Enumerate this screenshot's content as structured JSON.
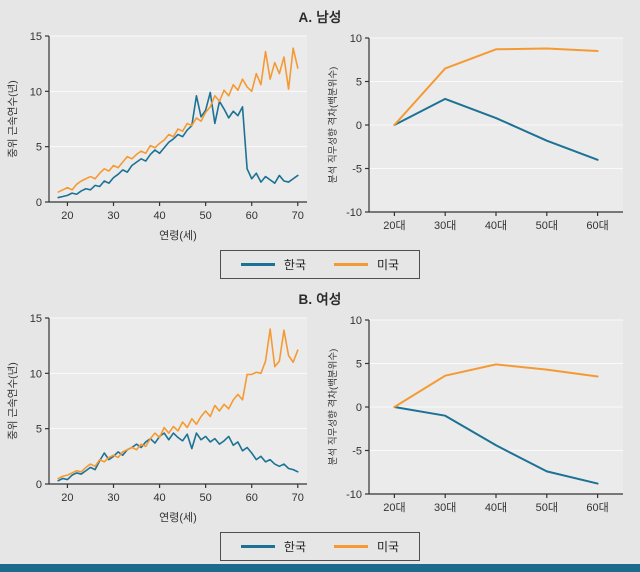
{
  "page": {
    "background": "#e6e6e6"
  },
  "colors": {
    "korea": "#1c7295",
    "us": "#f59a33",
    "axis": "#333333",
    "text": "#333333",
    "grid": "#fafafa",
    "plot_bg": "#ebebeb",
    "footer_bar": "#1d6a8f"
  },
  "legend": {
    "korea": "한국",
    "us": "미국"
  },
  "panels": [
    {
      "title": "A. 남성"
    },
    {
      "title": "B. 여성"
    }
  ],
  "chart_data": [
    {
      "id": "male-tenure",
      "type": "line",
      "xlabel": "연령(세)",
      "ylabel": "중위 근속연수(년)",
      "xlim": [
        16,
        72
      ],
      "ylim": [
        0,
        15
      ],
      "xticks": [
        20,
        30,
        40,
        50,
        60,
        70
      ],
      "yticks": [
        0,
        5,
        10,
        15
      ],
      "x_start": 18,
      "x_step": 1,
      "series": [
        {
          "name": "한국",
          "key": "korea",
          "color": "korea",
          "y": [
            0.4,
            0.5,
            0.6,
            0.8,
            0.7,
            1.0,
            1.2,
            1.1,
            1.5,
            1.4,
            1.9,
            1.7,
            2.2,
            2.5,
            2.9,
            2.7,
            3.3,
            3.6,
            3.9,
            3.7,
            4.3,
            4.7,
            4.4,
            4.9,
            5.4,
            5.7,
            6.1,
            5.9,
            6.5,
            6.9,
            9.6,
            7.7,
            8.3,
            9.9,
            7.1,
            9.1,
            8.4,
            7.6,
            8.2,
            7.8,
            8.6,
            3.0,
            2.1,
            2.6,
            1.8,
            2.3,
            2.0,
            1.7,
            2.4,
            1.9,
            1.8,
            2.1,
            2.4
          ]
        },
        {
          "name": "미국",
          "key": "us",
          "color": "us",
          "y": [
            0.9,
            1.1,
            1.3,
            1.1,
            1.6,
            1.9,
            2.1,
            2.3,
            2.1,
            2.6,
            3.0,
            2.8,
            3.3,
            3.1,
            3.6,
            4.1,
            3.9,
            4.3,
            4.6,
            4.4,
            5.1,
            4.9,
            5.3,
            5.6,
            6.1,
            5.9,
            6.6,
            6.4,
            7.1,
            6.9,
            7.6,
            7.3,
            8.1,
            8.6,
            9.6,
            9.1,
            10.1,
            9.6,
            10.6,
            10.1,
            11.1,
            10.4,
            10.0,
            11.6,
            10.6,
            13.6,
            11.1,
            12.6,
            11.6,
            13.1,
            10.2,
            13.9,
            12.1
          ]
        }
      ]
    },
    {
      "id": "male-gap",
      "type": "line",
      "ylabel": "분석 직무성향 격차(백분위수)",
      "categories": [
        "20대",
        "30대",
        "40대",
        "50대",
        "60대"
      ],
      "ylim": [
        -10,
        10
      ],
      "yticks": [
        -10,
        -5,
        0,
        5,
        10
      ],
      "series": [
        {
          "name": "한국",
          "key": "korea",
          "color": "korea",
          "values": [
            0,
            3.0,
            0.8,
            -1.8,
            -4.0
          ]
        },
        {
          "name": "미국",
          "key": "us",
          "color": "us",
          "values": [
            0,
            6.5,
            8.7,
            8.8,
            8.5
          ]
        }
      ]
    },
    {
      "id": "female-tenure",
      "type": "line",
      "xlabel": "연령(세)",
      "ylabel": "중위 근속연수(년)",
      "xlim": [
        16,
        72
      ],
      "ylim": [
        0,
        15
      ],
      "xticks": [
        20,
        30,
        40,
        50,
        60,
        70
      ],
      "yticks": [
        0,
        5,
        10,
        15
      ],
      "x_start": 18,
      "x_step": 1,
      "series": [
        {
          "name": "한국",
          "key": "korea",
          "color": "korea",
          "y": [
            0.3,
            0.5,
            0.4,
            0.8,
            1.0,
            0.9,
            1.2,
            1.5,
            1.3,
            2.1,
            2.8,
            2.2,
            2.5,
            2.9,
            2.6,
            3.1,
            3.3,
            3.6,
            3.3,
            3.8,
            4.1,
            3.7,
            4.3,
            4.6,
            4.0,
            4.6,
            4.2,
            3.9,
            4.5,
            3.2,
            4.6,
            4.0,
            4.3,
            3.8,
            4.1,
            3.6,
            3.9,
            4.3,
            3.5,
            3.8,
            3.0,
            3.3,
            2.8,
            2.2,
            2.5,
            2.0,
            2.2,
            1.8,
            1.6,
            1.8,
            1.4,
            1.3,
            1.1
          ]
        },
        {
          "name": "미국",
          "key": "us",
          "color": "us",
          "y": [
            0.5,
            0.7,
            0.8,
            1.0,
            1.2,
            1.1,
            1.5,
            1.8,
            1.6,
            2.2,
            2.0,
            2.4,
            2.6,
            2.4,
            2.9,
            3.1,
            3.3,
            3.1,
            3.6,
            3.4,
            4.1,
            4.6,
            4.2,
            5.1,
            4.6,
            5.2,
            4.8,
            5.6,
            5.1,
            5.9,
            5.4,
            6.1,
            6.6,
            6.1,
            7.1,
            6.6,
            7.2,
            6.8,
            7.6,
            8.1,
            7.6,
            9.9,
            9.9,
            10.1,
            10.0,
            11.1,
            14.0,
            10.6,
            11.1,
            13.9,
            11.6,
            11.0,
            12.1
          ]
        }
      ]
    },
    {
      "id": "female-gap",
      "type": "line",
      "ylabel": "분석 직무성향 격차(백분위수)",
      "categories": [
        "20대",
        "30대",
        "40대",
        "50대",
        "60대"
      ],
      "ylim": [
        -10,
        10
      ],
      "yticks": [
        -10,
        -5,
        0,
        5,
        10
      ],
      "series": [
        {
          "name": "한국",
          "key": "korea",
          "color": "korea",
          "values": [
            0,
            -1.0,
            -4.4,
            -7.4,
            -8.8
          ]
        },
        {
          "name": "미국",
          "key": "us",
          "color": "us",
          "values": [
            0,
            3.6,
            4.9,
            4.3,
            3.5
          ]
        }
      ]
    }
  ]
}
